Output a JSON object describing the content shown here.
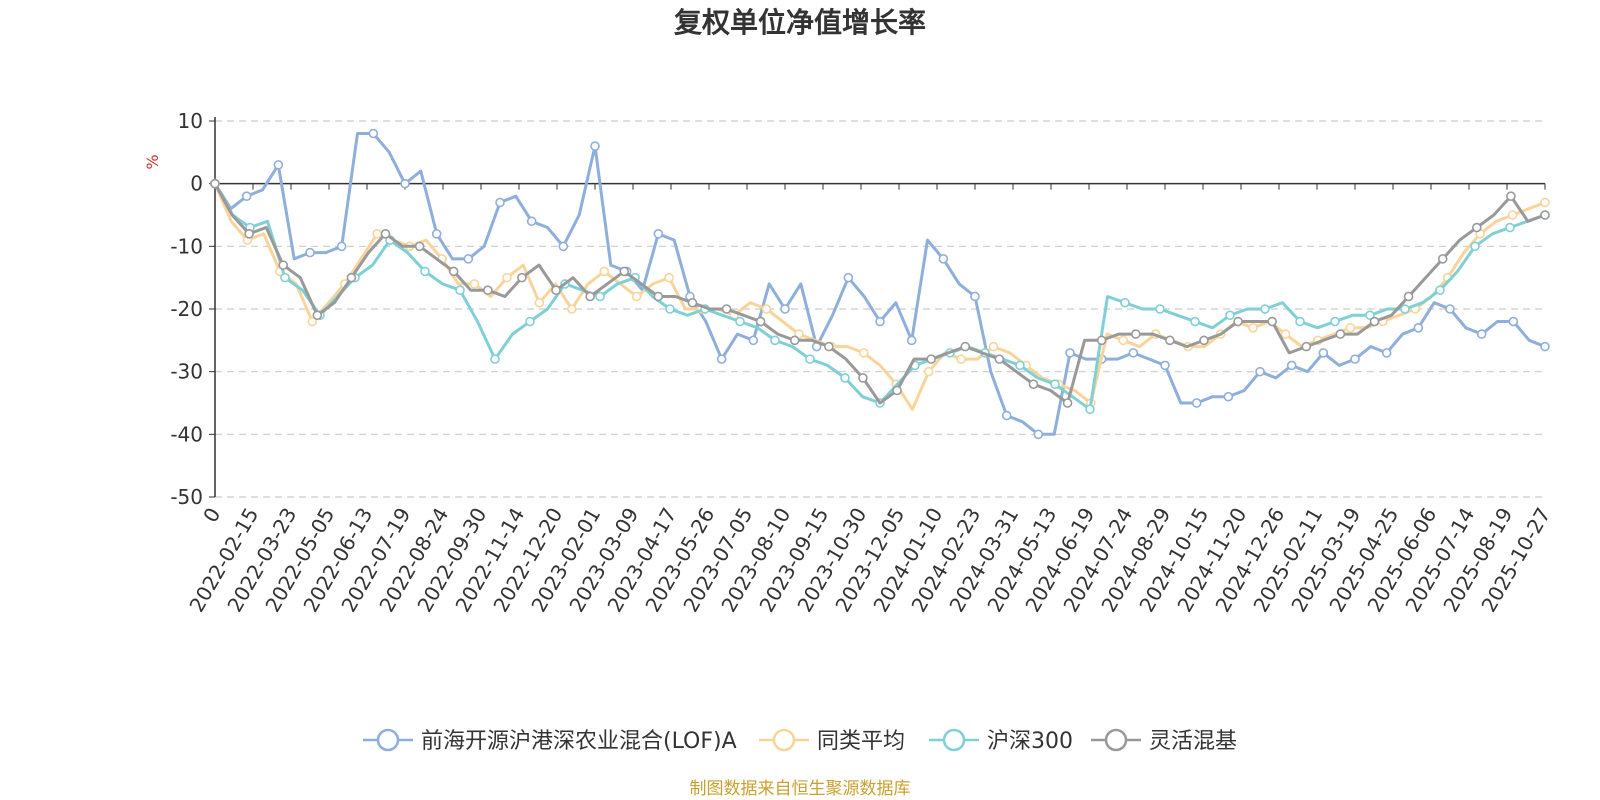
{
  "chart_data": {
    "type": "line",
    "title": "复权单位净值增长率",
    "ylabel": "%",
    "ylim": [
      -50,
      10
    ],
    "y_ticks": [
      "10",
      "0",
      "-10",
      "-20",
      "-30",
      "-40",
      "-50"
    ],
    "y_tick_values": [
      10,
      0,
      -10,
      -20,
      -30,
      -40,
      -50
    ],
    "x_tick_labels": [
      "0",
      "2022-02-15",
      "2022-03-23",
      "2022-05-05",
      "2022-06-13",
      "2022-07-19",
      "2022-08-24",
      "2022-09-30",
      "2022-11-14",
      "2022-12-20",
      "2023-02-01",
      "2023-03-09",
      "2023-04-17",
      "2023-05-26",
      "2023-07-05",
      "2023-08-10",
      "2023-09-15",
      "2023-10-30",
      "2023-12-05",
      "2024-01-10",
      "2024-02-23",
      "2024-03-31",
      "2024-05-13",
      "2024-06-19",
      "2024-07-24",
      "2024-08-29",
      "2024-10-15",
      "2024-11-20",
      "2024-12-26",
      "2025-02-11",
      "2025-03-19",
      "2025-04-25",
      "2025-06-06",
      "2025-07-14",
      "2025-08-19",
      "2025-10-27"
    ],
    "grid": true,
    "legend_position": "bottom",
    "series": [
      {
        "name": "前海开源沪港深农业混合(LOF)A",
        "color": "#8eaedb",
        "values": [
          0,
          -4,
          -2,
          -1,
          3,
          -12,
          -11,
          -11,
          -10,
          8,
          8,
          5,
          0,
          2,
          -8,
          -12,
          -12,
          -10,
          -3,
          -2,
          -6,
          -7,
          -10,
          -5,
          6,
          -13,
          -14,
          -17,
          -8,
          -9,
          -18,
          -22,
          -28,
          -24,
          -25,
          -16,
          -20,
          -16,
          -26,
          -21,
          -15,
          -18,
          -22,
          -19,
          -25,
          -9,
          -12,
          -16,
          -18,
          -30,
          -37,
          -38,
          -40,
          -40,
          -27,
          -28,
          -28,
          -28,
          -27,
          -28,
          -29,
          -35,
          -35,
          -34,
          -34,
          -33,
          -30,
          -31,
          -29,
          -30,
          -27,
          -29,
          -28,
          -26,
          -27,
          -24,
          -23,
          -19,
          -20,
          -23,
          -24,
          -22,
          -22,
          -25,
          -26
        ]
      },
      {
        "name": "同类平均",
        "color": "#f9d49a",
        "values": [
          0,
          -6,
          -9,
          -8,
          -14,
          -16,
          -22,
          -19,
          -16,
          -12,
          -8,
          -9,
          -10,
          -9,
          -12,
          -16,
          -16,
          -18,
          -15,
          -13,
          -19,
          -16,
          -20,
          -16,
          -14,
          -16,
          -18,
          -16,
          -15,
          -20,
          -20,
          -20,
          -21,
          -19,
          -20,
          -22,
          -24,
          -25,
          -26,
          -26,
          -27,
          -29,
          -32,
          -36,
          -30,
          -27,
          -28,
          -28,
          -26,
          -27,
          -29,
          -31,
          -32,
          -33,
          -35,
          -24,
          -25,
          -26,
          -24,
          -25,
          -26,
          -26,
          -24,
          -22,
          -23,
          -22,
          -24,
          -26,
          -25,
          -24,
          -23,
          -23,
          -22,
          -21,
          -20,
          -18,
          -15,
          -11,
          -8,
          -6,
          -5,
          -4,
          -3
        ]
      },
      {
        "name": "沪深300",
        "color": "#7fd0d6",
        "values": [
          0,
          -5,
          -7,
          -6,
          -15,
          -17,
          -21,
          -18,
          -15,
          -13,
          -9,
          -11,
          -14,
          -16,
          -17,
          -22,
          -28,
          -24,
          -22,
          -20,
          -16,
          -17,
          -18,
          -16,
          -15,
          -18,
          -20,
          -21,
          -20,
          -21,
          -22,
          -23,
          -25,
          -26,
          -28,
          -29,
          -31,
          -34,
          -35,
          -32,
          -29,
          -28,
          -27,
          -26,
          -27,
          -28,
          -29,
          -31,
          -32,
          -34,
          -36,
          -18,
          -19,
          -20,
          -20,
          -21,
          -22,
          -23,
          -21,
          -20,
          -20,
          -19,
          -22,
          -23,
          -22,
          -21,
          -21,
          -20,
          -20,
          -19,
          -17,
          -14,
          -10,
          -8,
          -7,
          -6,
          -5
        ]
      },
      {
        "name": "灵活混基",
        "color": "#999999",
        "values": [
          0,
          -5,
          -8,
          -7,
          -13,
          -15,
          -21,
          -19,
          -15,
          -11,
          -8,
          -10,
          -10,
          -12,
          -14,
          -17,
          -17,
          -18,
          -15,
          -13,
          -17,
          -15,
          -18,
          -16,
          -14,
          -16,
          -18,
          -18,
          -19,
          -20,
          -20,
          -21,
          -22,
          -24,
          -25,
          -25,
          -26,
          -28,
          -31,
          -35,
          -33,
          -28,
          -28,
          -27,
          -26,
          -27,
          -28,
          -30,
          -32,
          -33,
          -35,
          -25,
          -25,
          -24,
          -24,
          -24,
          -25,
          -26,
          -25,
          -24,
          -22,
          -22,
          -22,
          -27,
          -26,
          -25,
          -24,
          -24,
          -22,
          -21,
          -18,
          -15,
          -12,
          -9,
          -7,
          -5,
          -2,
          -6,
          -5
        ]
      }
    ]
  },
  "legend": {
    "items": [
      "前海开源沪港深农业混合(LOF)A",
      "同类平均",
      "沪深300",
      "灵活混基"
    ]
  },
  "source_note": "制图数据来自恒生聚源数据库",
  "colors": {
    "unit": "#e03030",
    "source": "#c9a030",
    "grid": "#cccccc",
    "axis": "#333333"
  }
}
